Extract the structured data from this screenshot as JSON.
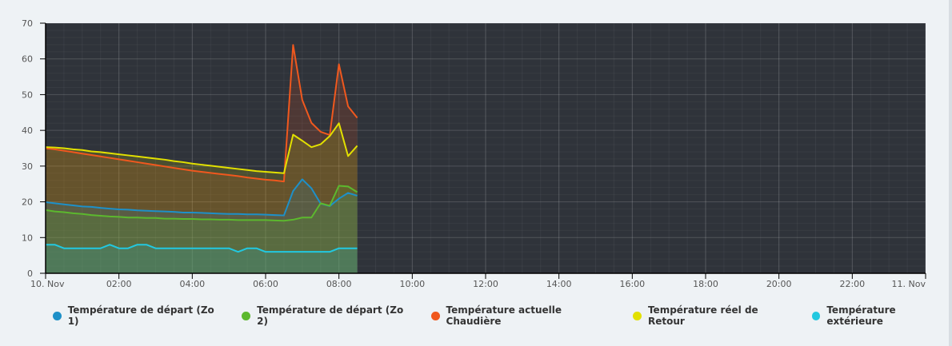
{
  "chart_data": {
    "type": "area",
    "title": "",
    "xlabel": "",
    "ylabel": "",
    "ylim": [
      0,
      70
    ],
    "yticks": [
      "0",
      "10",
      "20",
      "30",
      "40",
      "50",
      "60",
      "70"
    ],
    "xlim_hours": [
      0,
      24
    ],
    "xticks": [
      "10. Nov",
      "02:00",
      "04:00",
      "06:00",
      "08:00",
      "10:00",
      "12:00",
      "14:00",
      "16:00",
      "18:00",
      "20:00",
      "22:00",
      "11. Nov"
    ],
    "x_start": "10. Nov 00:00",
    "x_step_minutes": 15,
    "grid": true,
    "legend_position": "bottom",
    "background": "#2f333a",
    "series": [
      {
        "name": "Température de départ (Zo 1)",
        "color": "#1e90c8",
        "values": [
          19.9,
          19.6,
          19.3,
          19.0,
          18.7,
          18.6,
          18.3,
          18.1,
          17.9,
          17.8,
          17.6,
          17.5,
          17.4,
          17.3,
          17.2,
          17.0,
          17.0,
          16.9,
          16.8,
          16.7,
          16.6,
          16.6,
          16.5,
          16.5,
          16.4,
          16.3,
          16.2,
          23.0,
          26.3,
          23.8,
          19.5,
          18.8,
          20.9,
          22.5,
          21.7
        ]
      },
      {
        "name": "Température de départ (Zo 2)",
        "color": "#5cb82e",
        "values": [
          17.7,
          17.3,
          17.1,
          16.8,
          16.6,
          16.3,
          16.1,
          15.9,
          15.8,
          15.6,
          15.6,
          15.5,
          15.5,
          15.3,
          15.3,
          15.2,
          15.2,
          15.1,
          15.1,
          15.0,
          15.0,
          14.9,
          14.9,
          14.9,
          14.9,
          14.8,
          14.7,
          15.0,
          15.6,
          15.6,
          19.6,
          18.9,
          24.5,
          24.3,
          22.7
        ]
      },
      {
        "name": "Température actuelle Chaudière",
        "color": "#f0581e",
        "values": [
          35.0,
          34.7,
          34.3,
          33.9,
          33.5,
          33.1,
          32.7,
          32.3,
          31.9,
          31.5,
          31.1,
          30.7,
          30.3,
          29.9,
          29.5,
          29.1,
          28.7,
          28.4,
          28.1,
          27.8,
          27.5,
          27.2,
          26.8,
          26.5,
          26.2,
          26.0,
          25.7,
          63.9,
          48.5,
          42.1,
          39.6,
          38.7,
          58.5,
          46.7,
          43.5
        ]
      },
      {
        "name": "Température réel de Retour",
        "color": "#e2e000",
        "values": [
          35.3,
          35.2,
          35.0,
          34.7,
          34.5,
          34.1,
          33.9,
          33.6,
          33.3,
          33.0,
          32.7,
          32.4,
          32.1,
          31.8,
          31.4,
          31.1,
          30.7,
          30.4,
          30.1,
          29.8,
          29.5,
          29.2,
          28.9,
          28.6,
          28.4,
          28.2,
          28.0,
          38.8,
          37.1,
          35.3,
          36.1,
          38.4,
          42.0,
          32.8,
          35.7
        ]
      },
      {
        "name": "Température extérieure",
        "color": "#22c8e0",
        "values": [
          8,
          8,
          7,
          7,
          7,
          7,
          7,
          8,
          7,
          7,
          8,
          8,
          7,
          7,
          7,
          7,
          7,
          7,
          7,
          7,
          7,
          6,
          7,
          7,
          6,
          6,
          6,
          6,
          6,
          6,
          6,
          6,
          7,
          7,
          7
        ]
      }
    ]
  }
}
